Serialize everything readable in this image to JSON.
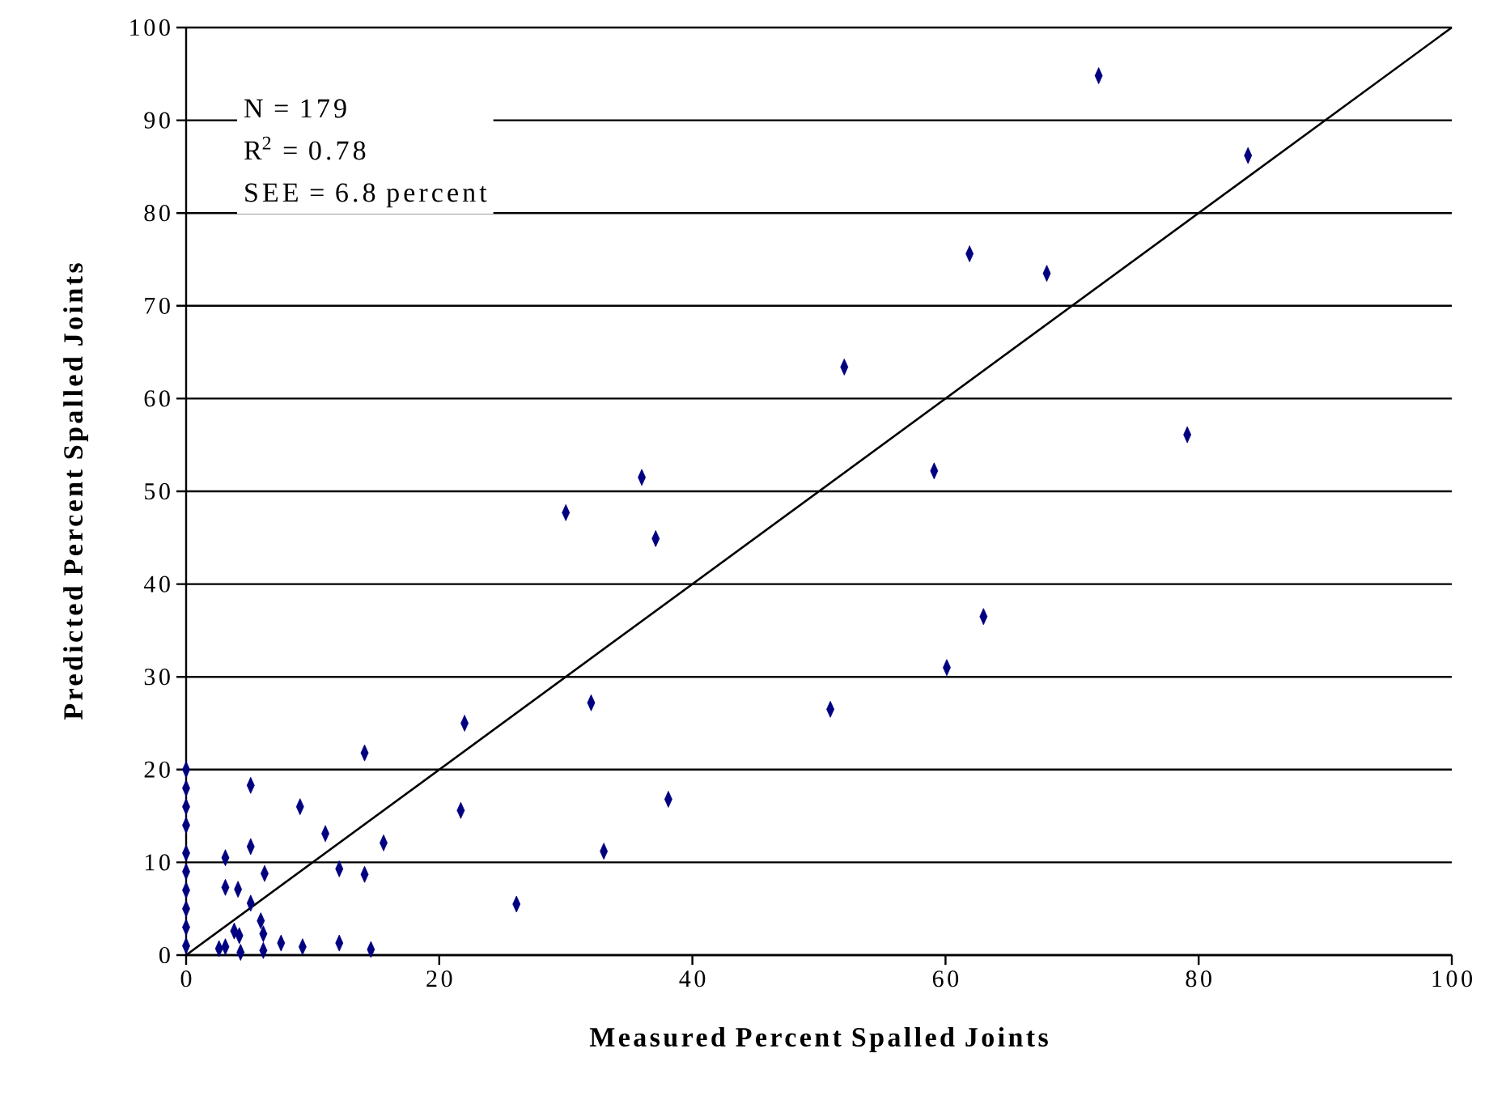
{
  "chart_data": {
    "type": "scatter",
    "xlabel": "Measured Percent Spalled Joints",
    "ylabel": "Predicted Percent Spalled Joints",
    "annotations": [
      "N = 179",
      "R$^{2}$ = 0.78",
      "SEE = 6.8 percent"
    ],
    "xlim": [
      0,
      100
    ],
    "ylim": [
      0,
      100
    ],
    "xticks": [
      0,
      20,
      40,
      60,
      80,
      100
    ],
    "yticks": [
      0,
      10,
      20,
      30,
      40,
      50,
      60,
      70,
      80,
      90,
      100
    ],
    "grid": "y",
    "marker": "diamond",
    "series": [
      {
        "color": "#000080",
        "x": [
          72.1,
          83.9,
          61.9,
          68.0,
          52.0,
          79.1,
          59.1,
          36.0,
          30.0,
          37.1,
          63.0,
          60.1,
          50.9,
          32.0,
          22.0,
          38.1,
          0,
          0,
          0,
          0,
          0,
          0,
          0,
          0,
          0,
          0,
          5.1,
          9.0,
          11.0,
          14.1,
          5.1,
          3.1,
          3.1,
          6.2,
          4.1,
          5.1,
          5.9,
          3.8,
          4.2,
          6.1,
          6.1,
          2.6,
          3.1,
          4.3,
          7.5,
          9.2,
          12.1,
          14.6,
          12.1,
          14.1,
          15.6,
          21.7,
          26.1,
          33.0
        ],
        "values": [
          94.8,
          86.2,
          75.6,
          73.5,
          63.4,
          56.1,
          52.2,
          51.5,
          47.7,
          44.9,
          36.5,
          31.0,
          26.5,
          27.2,
          25.0,
          16.8,
          1,
          3,
          5,
          7,
          9,
          11,
          14,
          16,
          18,
          20,
          18.3,
          16.0,
          13.1,
          21.8,
          11.7,
          10.5,
          7.3,
          8.8,
          7.1,
          5.6,
          3.7,
          2.6,
          2.1,
          2.3,
          0.5,
          0.7,
          0.9,
          0.3,
          1.3,
          0.9,
          1.3,
          0.6,
          9.3,
          8.7,
          12.1,
          15.6,
          5.5,
          11.2
        ]
      },
      {
        "type": "line",
        "color": "#000000",
        "marker": "none",
        "x": [
          0,
          100
        ],
        "values": [
          0,
          100
        ]
      }
    ]
  }
}
